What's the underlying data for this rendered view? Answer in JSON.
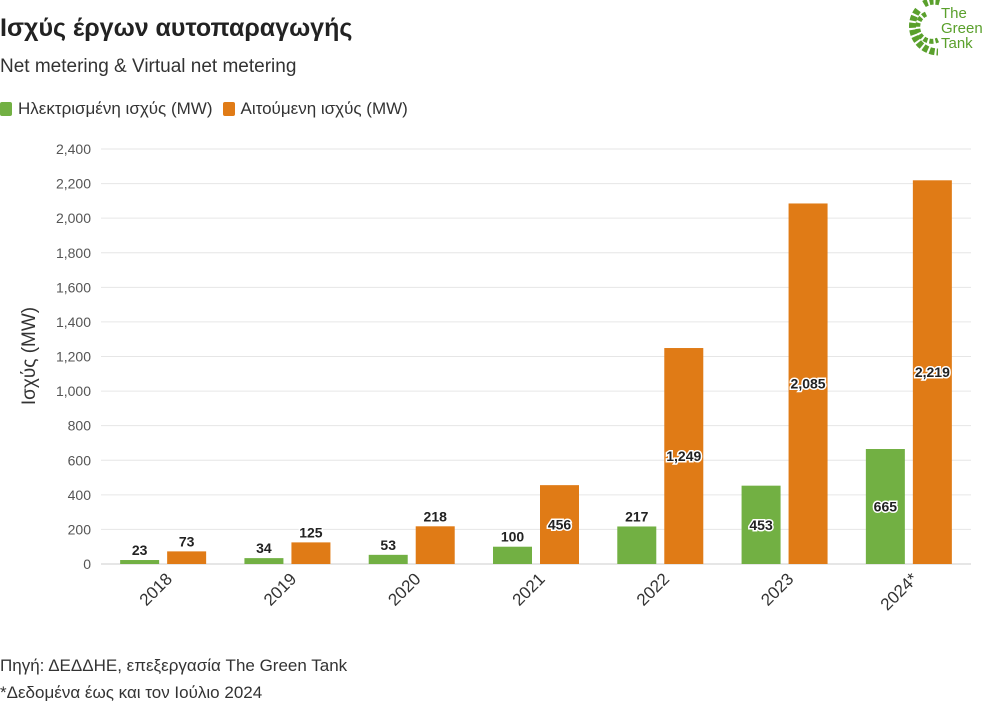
{
  "header": {
    "title": "Ισχύς έργων αυτοπαραγωγής",
    "subtitle": "Net metering & Virtual net metering"
  },
  "logo": {
    "icon": "green-tank-leaf-logo-icon",
    "line1": "The",
    "line2": "Green",
    "line3": "Tank"
  },
  "footer": {
    "source": "Πηγή: ΔΕΔΔΗΕ, επεξεργασία The Green Tank",
    "note": "*Δεδομένα έως και τον Ιούλιο 2024"
  },
  "colors": {
    "green": "#72b043",
    "orange": "#e07b16",
    "grid": "#e6e6e6",
    "text": "#333333"
  },
  "chart_data": {
    "type": "bar",
    "title": "Ισχύς έργων αυτοπαραγωγής",
    "subtitle": "Net metering & Virtual net metering",
    "xlabel": "",
    "ylabel": "Ισχύς (MW)",
    "categories": [
      "2018",
      "2019",
      "2020",
      "2021",
      "2022",
      "2023",
      "2024*"
    ],
    "series": [
      {
        "name": "Ηλεκτρισμένη ισχύς (MW)",
        "color": "#72b043",
        "values": [
          23,
          34,
          53,
          100,
          217,
          453,
          665
        ],
        "labels": [
          "23",
          "34",
          "53",
          "100",
          "217",
          "453",
          "665"
        ]
      },
      {
        "name": "Αιτούμενη ισχύς (MW)",
        "color": "#e07b16",
        "values": [
          73,
          125,
          218,
          456,
          1249,
          2085,
          2219
        ],
        "labels": [
          "73",
          "125",
          "218",
          "456",
          "1,249",
          "2,085",
          "2,219"
        ]
      }
    ],
    "ylim": [
      0,
      2400
    ],
    "yticks": [
      "0",
      "200",
      "400",
      "600",
      "800",
      "1,000",
      "1,200",
      "1,400",
      "1,600",
      "1,800",
      "2,000",
      "2,200",
      "2,400"
    ],
    "grid": true,
    "legend_position": "top-left"
  }
}
